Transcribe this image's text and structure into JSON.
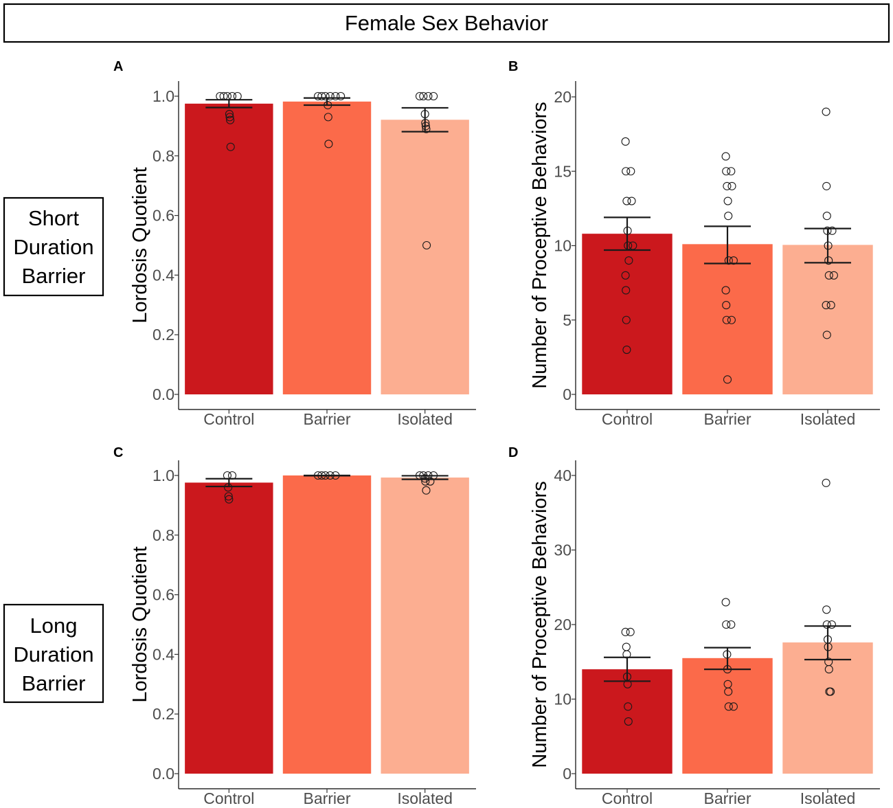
{
  "figure": {
    "title": "Female Sex Behavior",
    "rows": [
      {
        "label_lines": [
          "Short",
          "Duration",
          "Barrier"
        ]
      },
      {
        "label_lines": [
          "Long",
          "Duration",
          "Barrier"
        ]
      }
    ],
    "colors": {
      "Control": "#cb181d",
      "Barrier": "#fb6a4a",
      "Isolated": "#fcae91"
    }
  },
  "chart_data": [
    {
      "panel": "A",
      "type": "bar",
      "categories": [
        "Control",
        "Barrier",
        "Isolated"
      ],
      "values": [
        0.975,
        0.982,
        0.921
      ],
      "error_low": [
        0.962,
        0.97,
        0.881
      ],
      "error_high": [
        0.988,
        0.994,
        0.961
      ],
      "points": [
        [
          1.0,
          1.0,
          1.0,
          1.0,
          1.0,
          0.94,
          0.93,
          0.92,
          0.83
        ],
        [
          1.0,
          1.0,
          1.0,
          1.0,
          1.0,
          1.0,
          0.97,
          0.93,
          0.84
        ],
        [
          1.0,
          1.0,
          1.0,
          1.0,
          0.94,
          0.91,
          0.9,
          0.89,
          0.5
        ]
      ],
      "xlabel": "",
      "ylabel": "Lordosis Quotient",
      "ylim": [
        0,
        1.0
      ],
      "yticks": [
        0.0,
        0.2,
        0.4,
        0.6,
        0.8,
        1.0
      ],
      "ytick_labels": [
        "0.0",
        "0.2",
        "0.4",
        "0.6",
        "0.8",
        "1.0"
      ]
    },
    {
      "panel": "B",
      "type": "bar",
      "categories": [
        "Control",
        "Barrier",
        "Isolated"
      ],
      "values": [
        10.8,
        10.1,
        10.05
      ],
      "error_low": [
        9.7,
        8.8,
        8.85
      ],
      "error_high": [
        11.9,
        11.3,
        11.15
      ],
      "points": [
        [
          17,
          15,
          15,
          13,
          13,
          11,
          10,
          10,
          9,
          8,
          7,
          5,
          3
        ],
        [
          16,
          15,
          15,
          14,
          14,
          13,
          12,
          9,
          9,
          7,
          6,
          5,
          5,
          1
        ],
        [
          19,
          14,
          12,
          11,
          11,
          10,
          9,
          8,
          8,
          6,
          6,
          4
        ]
      ],
      "xlabel": "",
      "ylabel": "Number of Proceptive Behaviors",
      "ylim": [
        0,
        20
      ],
      "yticks": [
        0,
        5,
        10,
        15,
        20
      ],
      "ytick_labels": [
        "0",
        "5",
        "10",
        "15",
        "20"
      ]
    },
    {
      "panel": "C",
      "type": "bar",
      "categories": [
        "Control",
        "Barrier",
        "Isolated"
      ],
      "values": [
        0.976,
        1.0,
        0.993
      ],
      "error_low": [
        0.963,
        0.999,
        0.987
      ],
      "error_high": [
        0.989,
        1.0,
        0.999
      ],
      "points": [
        [
          1.0,
          1.0,
          0.96,
          0.93,
          0.92
        ],
        [
          1.0,
          1.0,
          1.0,
          1.0,
          1.0
        ],
        [
          1.0,
          1.0,
          1.0,
          1.0,
          0.99,
          0.98,
          0.98,
          0.95
        ]
      ],
      "xlabel": "",
      "ylabel": "Lordosis Quotient",
      "ylim": [
        0,
        1.0
      ],
      "yticks": [
        0.0,
        0.2,
        0.4,
        0.6,
        0.8,
        1.0
      ],
      "ytick_labels": [
        "0.0",
        "0.2",
        "0.4",
        "0.6",
        "0.8",
        "1.0"
      ]
    },
    {
      "panel": "D",
      "type": "bar",
      "categories": [
        "Control",
        "Barrier",
        "Isolated"
      ],
      "values": [
        14.0,
        15.5,
        17.6
      ],
      "error_low": [
        12.4,
        14.0,
        15.3
      ],
      "error_high": [
        15.6,
        16.9,
        19.8
      ],
      "points": [
        [
          19,
          19,
          17,
          16,
          13,
          12,
          9,
          7
        ],
        [
          23,
          20,
          20,
          16,
          14,
          12,
          11,
          9,
          9
        ],
        [
          39,
          22,
          20,
          20,
          18,
          17,
          15,
          14,
          11,
          11
        ]
      ],
      "xlabel": "",
      "ylabel": "Number of Proceptive Behaviors",
      "ylim": [
        0,
        40
      ],
      "yticks": [
        0,
        10,
        20,
        30,
        40
      ],
      "ytick_labels": [
        "0",
        "10",
        "20",
        "30",
        "40"
      ]
    }
  ]
}
